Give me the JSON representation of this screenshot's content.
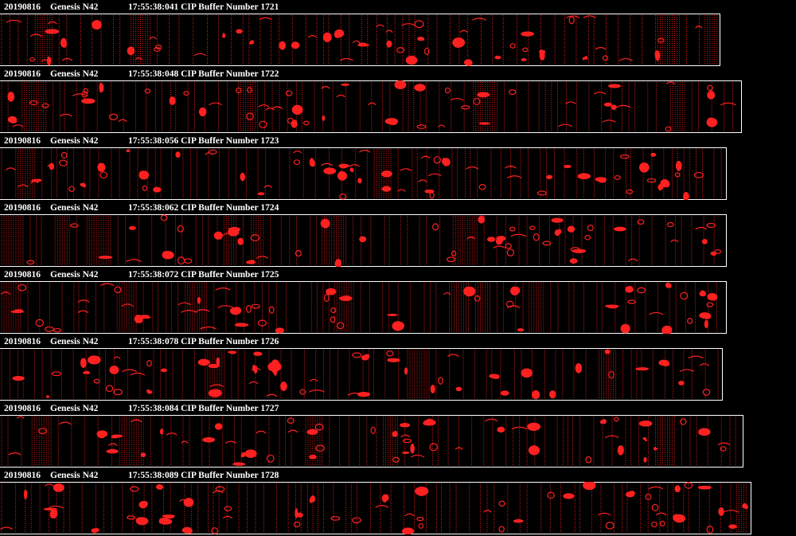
{
  "colors": {
    "background": "#000000",
    "text": "#ffffff",
    "particles": "#ff2020"
  },
  "panels": [
    {
      "date": "20190816",
      "probe": "Genesis N42",
      "time": "17:55:38:041",
      "buffer_label": "CIP Buffer Number",
      "buffer": "1721"
    },
    {
      "date": "20190816",
      "probe": "Genesis N42",
      "time": "17:55:38:048",
      "buffer_label": "CIP Buffer Number",
      "buffer": "1722"
    },
    {
      "date": "20190816",
      "probe": "Genesis N42",
      "time": "17:55:38:056",
      "buffer_label": "CIP Buffer Number",
      "buffer": "1723"
    },
    {
      "date": "20190816",
      "probe": "Genesis N42",
      "time": "17:55:38:062",
      "buffer_label": "CIP Buffer Number",
      "buffer": "1724"
    },
    {
      "date": "20190816",
      "probe": "Genesis N42",
      "time": "17:55:38:072",
      "buffer_label": "CIP Buffer Number",
      "buffer": "1725"
    },
    {
      "date": "20190816",
      "probe": "Genesis N42",
      "time": "17:55:38:078",
      "buffer_label": "CIP Buffer Number",
      "buffer": "1726"
    },
    {
      "date": "20190816",
      "probe": "Genesis N42",
      "time": "17:55:38:084",
      "buffer_label": "CIP Buffer Number",
      "buffer": "1727"
    },
    {
      "date": "20190816",
      "probe": "Genesis N42",
      "time": "17:55:38:089",
      "buffer_label": "CIP Buffer Number",
      "buffer": "1728"
    }
  ]
}
